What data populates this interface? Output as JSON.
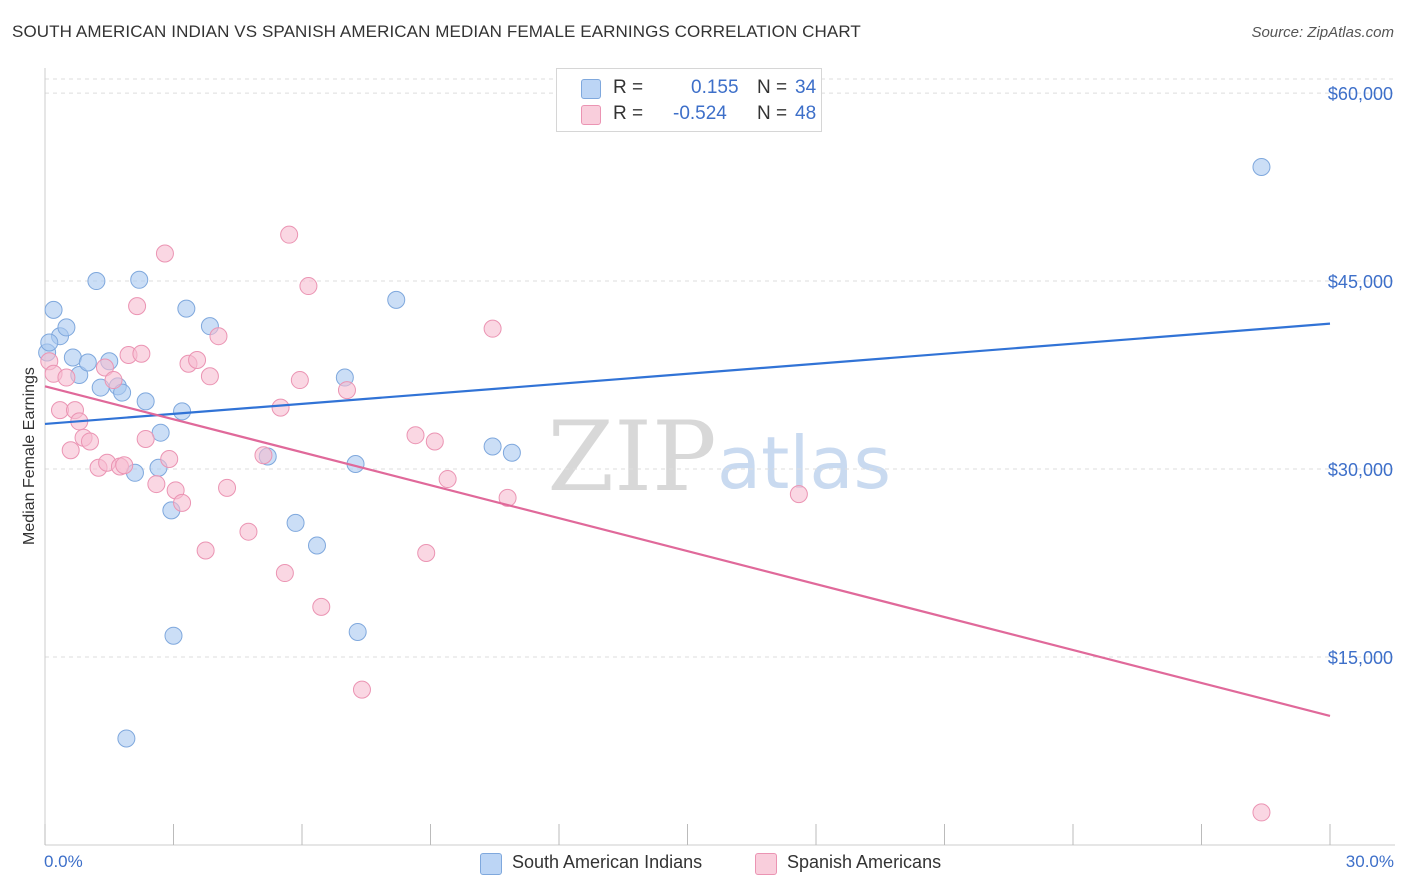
{
  "header": {
    "title": "SOUTH AMERICAN INDIAN VS SPANISH AMERICAN MEDIAN FEMALE EARNINGS CORRELATION CHART",
    "source": "Source: ZipAtlas.com"
  },
  "watermark": {
    "zip": "ZIP",
    "atlas": "atlas"
  },
  "legend": {
    "rows": [
      {
        "r_label": "R =",
        "r_value": "0.155",
        "n_label": "N =",
        "n_value": "34"
      },
      {
        "r_label": "R =",
        "r_value": "-0.524",
        "n_label": "N =",
        "n_value": "48"
      }
    ]
  },
  "chart_data": {
    "type": "scatter",
    "title": "SOUTH AMERICAN INDIAN VS SPANISH AMERICAN MEDIAN FEMALE EARNINGS CORRELATION CHART",
    "xlabel": "",
    "ylabel": "Median Female Earnings",
    "xlim": [
      0,
      30
    ],
    "ylim": [
      0,
      62000
    ],
    "x_tick_labels": [
      "0.0%",
      "30.0%"
    ],
    "y_ticks": [
      {
        "value": 15000,
        "label": "$15,000"
      },
      {
        "value": 30000,
        "label": "$30,000"
      },
      {
        "value": 45000,
        "label": "$45,000"
      },
      {
        "value": 60000,
        "label": "$60,000"
      }
    ],
    "grid": true,
    "legend_position": "bottom",
    "series": [
      {
        "name": "South American Indians",
        "color": "#a8c8f0",
        "stroke": "#7fa8dd",
        "trend_color": "#3173d6",
        "trend": [
          [
            0,
            33600
          ],
          [
            30,
            41600
          ]
        ],
        "points": [
          [
            0.05,
            39300
          ],
          [
            0.2,
            42700
          ],
          [
            0.35,
            40600
          ],
          [
            0.5,
            41300
          ],
          [
            0.65,
            38900
          ],
          [
            0.8,
            37500
          ],
          [
            1.0,
            38500
          ],
          [
            1.2,
            45000
          ],
          [
            1.3,
            36500
          ],
          [
            1.5,
            38600
          ],
          [
            1.7,
            36600
          ],
          [
            1.8,
            36100
          ],
          [
            1.9,
            8500
          ],
          [
            2.1,
            29700
          ],
          [
            2.2,
            45100
          ],
          [
            2.35,
            35400
          ],
          [
            2.65,
            30100
          ],
          [
            2.7,
            32900
          ],
          [
            2.95,
            26700
          ],
          [
            3.0,
            16700
          ],
          [
            3.2,
            34600
          ],
          [
            3.3,
            42800
          ],
          [
            3.85,
            41400
          ],
          [
            5.2,
            31000
          ],
          [
            5.85,
            25700
          ],
          [
            6.35,
            23900
          ],
          [
            7.0,
            37300
          ],
          [
            7.25,
            30400
          ],
          [
            7.3,
            17000
          ],
          [
            8.2,
            43500
          ],
          [
            10.45,
            31800
          ],
          [
            10.9,
            31300
          ],
          [
            28.4,
            54100
          ],
          [
            0.1,
            40100
          ]
        ]
      },
      {
        "name": "Spanish Americans",
        "color": "#f6bcd0",
        "stroke": "#eb94b3",
        "trend_color": "#e0699a",
        "trend": [
          [
            0,
            36600
          ],
          [
            30,
            10300
          ]
        ],
        "points": [
          [
            0.1,
            38600
          ],
          [
            0.2,
            37600
          ],
          [
            0.35,
            34700
          ],
          [
            0.5,
            37300
          ],
          [
            0.6,
            31500
          ],
          [
            0.7,
            34700
          ],
          [
            0.8,
            33800
          ],
          [
            0.9,
            32500
          ],
          [
            1.05,
            32200
          ],
          [
            1.25,
            30100
          ],
          [
            1.4,
            38100
          ],
          [
            1.45,
            30500
          ],
          [
            1.6,
            37100
          ],
          [
            1.75,
            30200
          ],
          [
            1.85,
            30300
          ],
          [
            1.95,
            39100
          ],
          [
            2.15,
            43000
          ],
          [
            2.25,
            39200
          ],
          [
            2.35,
            32400
          ],
          [
            2.6,
            28800
          ],
          [
            2.8,
            47200
          ],
          [
            2.9,
            30800
          ],
          [
            3.05,
            28300
          ],
          [
            3.2,
            27300
          ],
          [
            3.35,
            38400
          ],
          [
            3.55,
            38700
          ],
          [
            3.75,
            23500
          ],
          [
            3.85,
            37400
          ],
          [
            4.05,
            40600
          ],
          [
            4.25,
            28500
          ],
          [
            4.75,
            25000
          ],
          [
            5.1,
            31100
          ],
          [
            5.5,
            34900
          ],
          [
            5.6,
            21700
          ],
          [
            5.7,
            48700
          ],
          [
            5.95,
            37100
          ],
          [
            6.15,
            44600
          ],
          [
            6.45,
            19000
          ],
          [
            7.05,
            36300
          ],
          [
            7.4,
            12400
          ],
          [
            8.65,
            32700
          ],
          [
            8.9,
            23300
          ],
          [
            9.1,
            32200
          ],
          [
            9.4,
            29200
          ],
          [
            10.45,
            41200
          ],
          [
            10.8,
            27700
          ],
          [
            17.6,
            28000
          ],
          [
            28.4,
            2600
          ]
        ]
      }
    ]
  }
}
